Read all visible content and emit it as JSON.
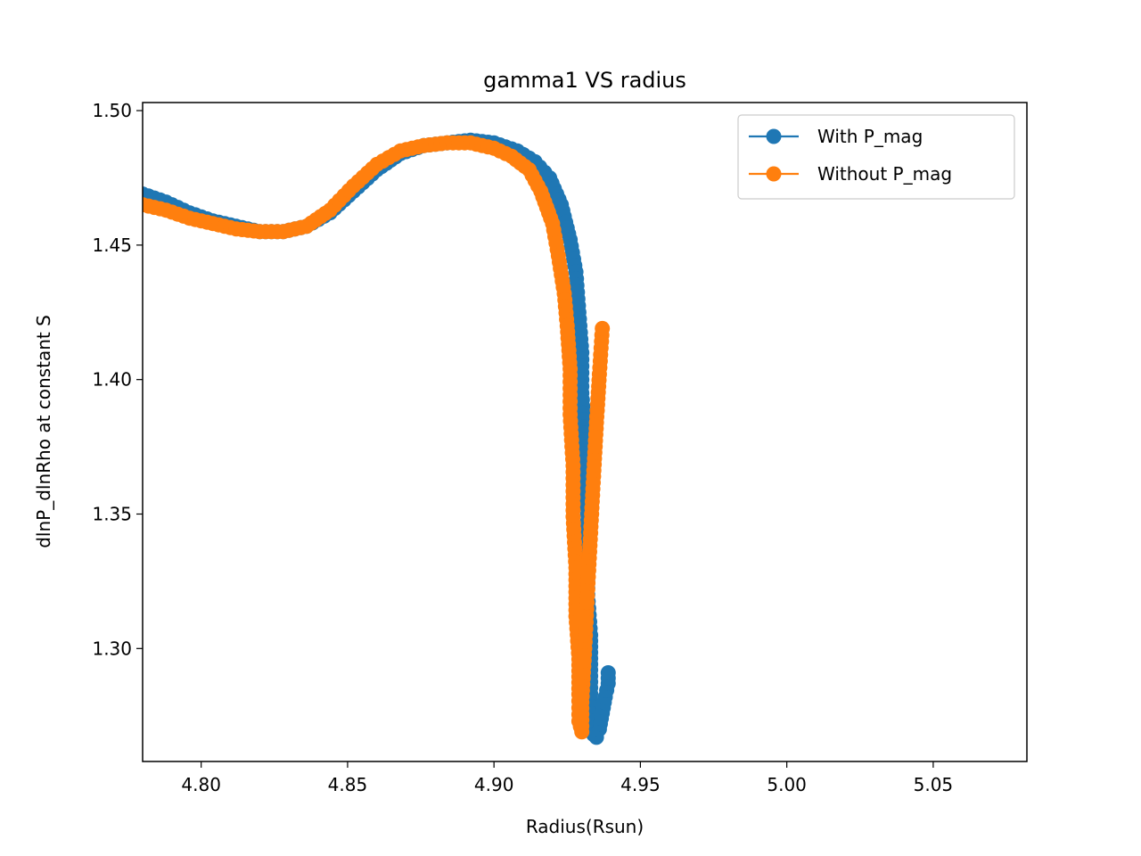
{
  "chart_data": {
    "type": "line",
    "title": "gamma1 VS radius",
    "xlabel": "Radius(Rsun)",
    "ylabel": "dlnP_dlnRho at constant S",
    "xlim": [
      4.78,
      5.082
    ],
    "ylim": [
      1.258,
      1.503
    ],
    "xticks": [
      4.8,
      4.85,
      4.9,
      4.95,
      5.0,
      5.05
    ],
    "xtick_labels": [
      "4.80",
      "4.85",
      "4.90",
      "4.95",
      "5.00",
      "5.05"
    ],
    "yticks": [
      1.3,
      1.35,
      1.4,
      1.45,
      1.5
    ],
    "ytick_labels": [
      "1.30",
      "1.35",
      "1.40",
      "1.45",
      "1.50"
    ],
    "grid": false,
    "legend": "top-right",
    "series": [
      {
        "name": "With P_mag",
        "color": "#1f77b4",
        "marker": "circle",
        "x": [
          4.78,
          4.788,
          4.796,
          4.804,
          4.812,
          4.82,
          4.828,
          4.836,
          4.844,
          4.852,
          4.86,
          4.868,
          4.876,
          4.884,
          4.892,
          4.9,
          4.908,
          4.914,
          4.919,
          4.923,
          4.926,
          4.928,
          4.929,
          4.93,
          4.93,
          4.931,
          4.931,
          4.932,
          4.932,
          4.932,
          4.933,
          4.933,
          4.933,
          4.934,
          4.934,
          4.935,
          4.936,
          4.937,
          4.938,
          4.939,
          4.939
        ],
        "y": [
          1.469,
          1.466,
          1.462,
          1.459,
          1.457,
          1.455,
          1.455,
          1.457,
          1.462,
          1.47,
          1.478,
          1.484,
          1.487,
          1.488,
          1.489,
          1.488,
          1.485,
          1.481,
          1.475,
          1.465,
          1.452,
          1.44,
          1.425,
          1.41,
          1.395,
          1.38,
          1.365,
          1.35,
          1.335,
          1.32,
          1.305,
          1.292,
          1.281,
          1.273,
          1.268,
          1.267,
          1.27,
          1.276,
          1.282,
          1.287,
          1.291
        ]
      },
      {
        "name": "Without P_mag",
        "color": "#ff7f0e",
        "marker": "circle",
        "x": [
          4.78,
          4.788,
          4.796,
          4.804,
          4.812,
          4.82,
          4.828,
          4.836,
          4.844,
          4.852,
          4.86,
          4.868,
          4.876,
          4.884,
          4.892,
          4.9,
          4.906,
          4.912,
          4.916,
          4.92,
          4.922,
          4.924,
          4.925,
          4.926,
          4.926,
          4.927,
          4.927,
          4.928,
          4.928,
          4.929,
          4.929,
          4.929,
          4.93,
          4.93,
          4.931,
          4.932,
          4.933,
          4.934,
          4.935,
          4.936,
          4.937
        ],
        "y": [
          1.465,
          1.463,
          1.46,
          1.458,
          1.456,
          1.455,
          1.455,
          1.457,
          1.463,
          1.472,
          1.48,
          1.485,
          1.487,
          1.488,
          1.488,
          1.486,
          1.483,
          1.478,
          1.47,
          1.458,
          1.446,
          1.432,
          1.42,
          1.404,
          1.387,
          1.368,
          1.349,
          1.33,
          1.312,
          1.296,
          1.283,
          1.273,
          1.269,
          1.28,
          1.3,
          1.322,
          1.343,
          1.364,
          1.384,
          1.402,
          1.419
        ]
      }
    ]
  }
}
